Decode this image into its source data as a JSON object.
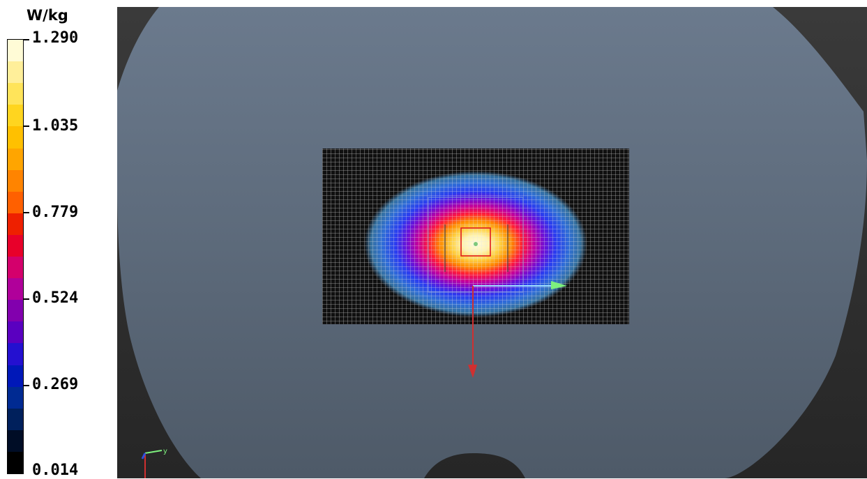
{
  "legend": {
    "unit": "W/kg",
    "ticks": [
      "1.290",
      "1.035",
      "0.779",
      "0.524",
      "0.269",
      "0.014"
    ],
    "colors": [
      "#fffbd6",
      "#ffef9a",
      "#ffe45a",
      "#ffd51f",
      "#ffc000",
      "#ffa500",
      "#ff8400",
      "#ff6000",
      "#ee2000",
      "#e8002a",
      "#d4006c",
      "#b0009a",
      "#8200ae",
      "#5a00c0",
      "#2410d0",
      "#0018b8",
      "#002a92",
      "#00205c",
      "#000d26",
      "#000000"
    ]
  },
  "viewport": {
    "axis_triad": {
      "y_label": "y"
    }
  }
}
